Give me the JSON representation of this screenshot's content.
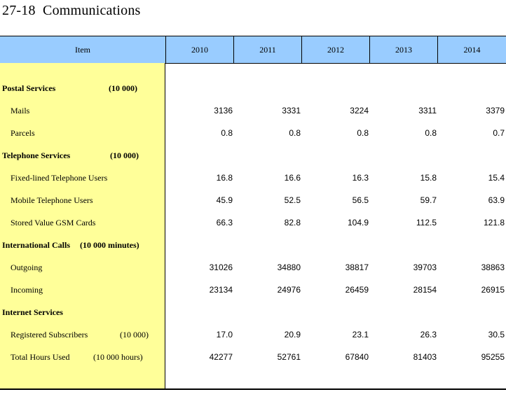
{
  "title": "27-18  Communications",
  "header": {
    "item": "Item",
    "years": [
      "2010",
      "2011",
      "2012",
      "2013",
      "2014"
    ]
  },
  "rows": [
    {
      "label": "Postal Services",
      "unit": "(10 000)",
      "type": "section",
      "values": []
    },
    {
      "label": "Mails",
      "unit": "",
      "type": "data",
      "values": [
        "3136",
        "3331",
        "3224",
        "3311",
        "3379"
      ]
    },
    {
      "label": "Parcels",
      "unit": "",
      "type": "data",
      "values": [
        "0.8",
        "0.8",
        "0.8",
        "0.8",
        "0.7"
      ]
    },
    {
      "label": "Telephone Services",
      "unit": "(10 000)",
      "type": "section",
      "values": []
    },
    {
      "label": "Fixed-lined Telephone Users",
      "unit": "",
      "type": "data",
      "values": [
        "16.8",
        "16.6",
        "16.3",
        "15.8",
        "15.4"
      ]
    },
    {
      "label": "Mobile Telephone Users",
      "unit": "",
      "type": "data",
      "values": [
        "45.9",
        "52.5",
        "56.5",
        "59.7",
        "63.9"
      ]
    },
    {
      "label": "Stored Value GSM Cards",
      "unit": "",
      "type": "data",
      "values": [
        "66.3",
        "82.8",
        "104.9",
        "112.5",
        "121.8"
      ]
    },
    {
      "label": "International Calls",
      "unit": "(10 000 minutes)",
      "type": "section",
      "values": []
    },
    {
      "label": "Outgoing",
      "unit": "",
      "type": "data",
      "values": [
        "31026",
        "34880",
        "38817",
        "39703",
        "38863"
      ]
    },
    {
      "label": "Incoming",
      "unit": "",
      "type": "data",
      "values": [
        "23134",
        "24976",
        "26459",
        "28154",
        "26915"
      ]
    },
    {
      "label": "Internet Services",
      "unit": "",
      "type": "section",
      "values": []
    },
    {
      "label": "Registered Subscribers",
      "unit": "(10 000)",
      "type": "data",
      "values": [
        "17.0",
        "20.9",
        "23.1",
        "26.3",
        "30.5"
      ]
    },
    {
      "label": "Total Hours Used",
      "unit": "(10 000 hours)",
      "type": "data",
      "values": [
        "42277",
        "52761",
        "67840",
        "81403",
        "95255"
      ]
    }
  ]
}
